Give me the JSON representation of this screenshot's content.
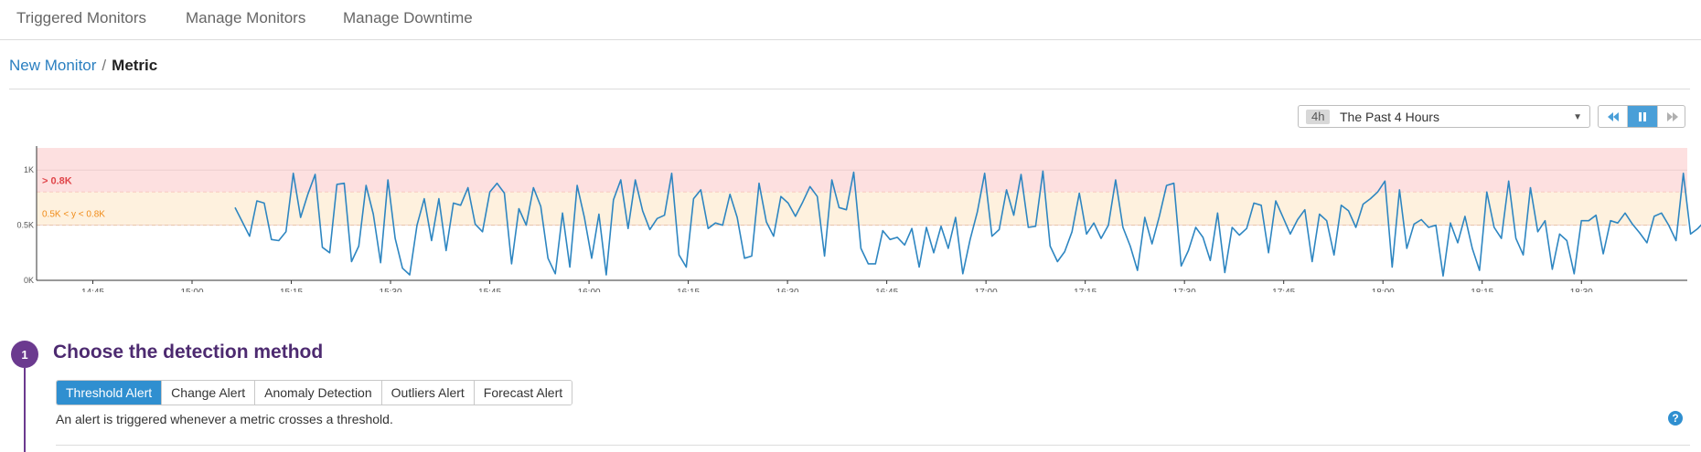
{
  "nav": {
    "tabs": [
      {
        "label": "Triggered Monitors"
      },
      {
        "label": "Manage Monitors"
      },
      {
        "label": "Manage Downtime"
      }
    ]
  },
  "breadcrumb": {
    "parent": "New Monitor",
    "separator": "/",
    "current": "Metric"
  },
  "timeframe": {
    "badge": "4h",
    "label": "The Past 4 Hours"
  },
  "playback": {
    "icons": [
      "rewind-icon",
      "pause-icon",
      "fast-forward-icon"
    ],
    "active": "pause"
  },
  "chart_data": {
    "type": "line",
    "ylim": [
      0,
      1.2
    ],
    "y_ticks": [
      {
        "value": 0,
        "label": "0K"
      },
      {
        "value": 0.5,
        "label": "0.5K"
      },
      {
        "value": 1,
        "label": "1K"
      }
    ],
    "x_ticks": [
      "14:45",
      "15:00",
      "15:15",
      "15:30",
      "15:45",
      "16:00",
      "16:15",
      "16:30",
      "16:45",
      "17:00",
      "17:15",
      "17:30",
      "17:45",
      "18:00",
      "18:15",
      "18:30"
    ],
    "x_tick_minutes": [
      0,
      15,
      30,
      45,
      60,
      75,
      90,
      105,
      120,
      135,
      150,
      165,
      180,
      195,
      210,
      225
    ],
    "x_range_minutes": [
      -8.5,
      241
    ],
    "zones": [
      {
        "label": "> 0.8K",
        "from": 0.8,
        "to": 1.2,
        "color": "#fde0e0",
        "line_color": "#f0a0a0",
        "text_color": "#e0454a"
      },
      {
        "label": "0.5K < y < 0.8K",
        "from": 0.5,
        "to": 0.8,
        "color": "#fef1de",
        "line_color": "#f0c080",
        "text_color": "#f08c1a"
      }
    ],
    "series": [
      {
        "color": "#2e86c1",
        "x_start_minutes": 21.5,
        "x_step_minutes": 1.1,
        "values": [
          0.66,
          0.53,
          0.4,
          0.72,
          0.7,
          0.37,
          0.36,
          0.44,
          0.97,
          0.57,
          0.78,
          0.96,
          0.3,
          0.25,
          0.87,
          0.88,
          0.17,
          0.31,
          0.86,
          0.6,
          0.16,
          0.91,
          0.38,
          0.11,
          0.05,
          0.5,
          0.74,
          0.36,
          0.74,
          0.27,
          0.7,
          0.68,
          0.84,
          0.51,
          0.44,
          0.8,
          0.88,
          0.79,
          0.15,
          0.65,
          0.5,
          0.84,
          0.67,
          0.2,
          0.06,
          0.61,
          0.12,
          0.86,
          0.57,
          0.2,
          0.6,
          0.05,
          0.73,
          0.91,
          0.47,
          0.91,
          0.63,
          0.46,
          0.56,
          0.59,
          0.97,
          0.23,
          0.12,
          0.74,
          0.82,
          0.47,
          0.52,
          0.5,
          0.78,
          0.57,
          0.2,
          0.22,
          0.88,
          0.53,
          0.4,
          0.76,
          0.7,
          0.58,
          0.71,
          0.85,
          0.76,
          0.22,
          0.91,
          0.66,
          0.64,
          0.98,
          0.29,
          0.15,
          0.15,
          0.45,
          0.37,
          0.39,
          0.32,
          0.47,
          0.12,
          0.48,
          0.25,
          0.49,
          0.29,
          0.57,
          0.06,
          0.37,
          0.62,
          0.97,
          0.4,
          0.46,
          0.82,
          0.59,
          0.96,
          0.48,
          0.49,
          0.99,
          0.31,
          0.17,
          0.26,
          0.44,
          0.79,
          0.42,
          0.52,
          0.38,
          0.5,
          0.91,
          0.48,
          0.31,
          0.09,
          0.57,
          0.33,
          0.58,
          0.86,
          0.88,
          0.13,
          0.27,
          0.48,
          0.39,
          0.18,
          0.61,
          0.07,
          0.48,
          0.41,
          0.47,
          0.7,
          0.68,
          0.25,
          0.72,
          0.57,
          0.42,
          0.55,
          0.64,
          0.17,
          0.6,
          0.54,
          0.23,
          0.68,
          0.63,
          0.48,
          0.69,
          0.74,
          0.8,
          0.9,
          0.12,
          0.82,
          0.29,
          0.51,
          0.55,
          0.48,
          0.5,
          0.04,
          0.52,
          0.34,
          0.58,
          0.29,
          0.09,
          0.8,
          0.48,
          0.38,
          0.9,
          0.38,
          0.23,
          0.84,
          0.44,
          0.54,
          0.1,
          0.42,
          0.36,
          0.06,
          0.54,
          0.54,
          0.59,
          0.24,
          0.54,
          0.52,
          0.61,
          0.51,
          0.43,
          0.34,
          0.58,
          0.61,
          0.5,
          0.36,
          0.97,
          0.42,
          0.47,
          0.54,
          0.43,
          0.43,
          0.26,
          0.62,
          0.25,
          0.32,
          0.55,
          0.08,
          0.93,
          0.15,
          0.22,
          0.3,
          0.26,
          0.18,
          0.52,
          0.45,
          0.62,
          0.43,
          0.46
        ]
      }
    ]
  },
  "step": {
    "number": "1",
    "title": "Choose the detection method"
  },
  "methods": [
    {
      "label": "Threshold Alert",
      "active": true
    },
    {
      "label": "Change Alert",
      "active": false
    },
    {
      "label": "Anomaly Detection",
      "active": false
    },
    {
      "label": "Outliers Alert",
      "active": false
    },
    {
      "label": "Forecast Alert",
      "active": false
    }
  ],
  "description": "An alert is triggered whenever a metric crosses a threshold.",
  "help": {
    "glyph": "?"
  }
}
